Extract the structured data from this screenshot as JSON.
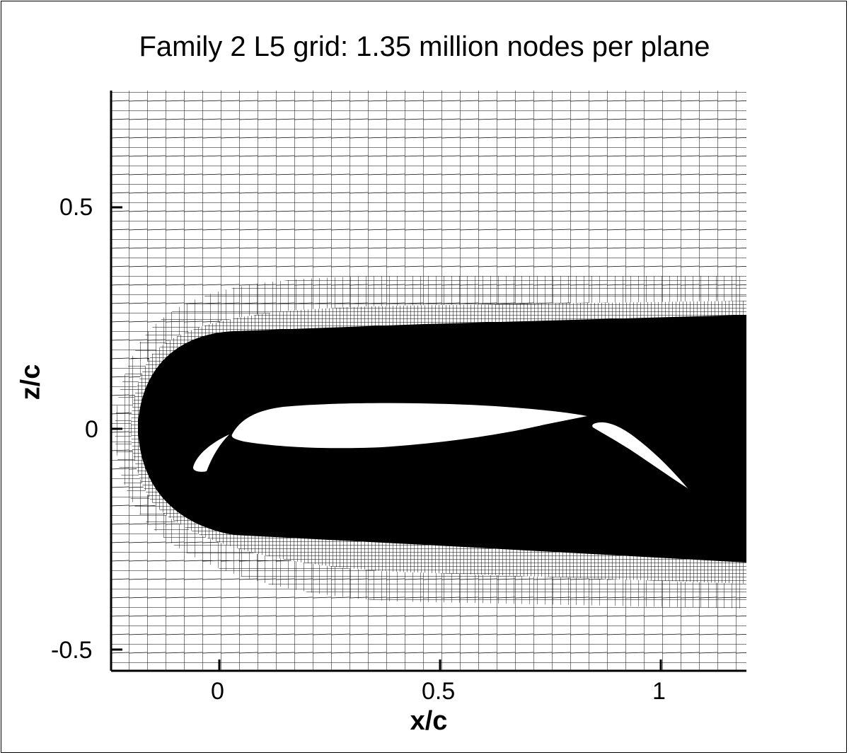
{
  "title": "Family 2 L5 grid: 1.35 million nodes per plane",
  "x_axis": {
    "label": "x/c",
    "ticks": [
      "0",
      "0.5",
      "1"
    ],
    "range": [
      -0.25,
      1.2
    ]
  },
  "y_axis": {
    "label": "z/c",
    "ticks": [
      "0.5",
      "0",
      "-0.5"
    ],
    "range": [
      -0.55,
      0.76
    ]
  },
  "colors": {
    "mesh": "#000000",
    "background": "#ffffff"
  },
  "elements": [
    "slat",
    "main-element",
    "flap"
  ]
}
